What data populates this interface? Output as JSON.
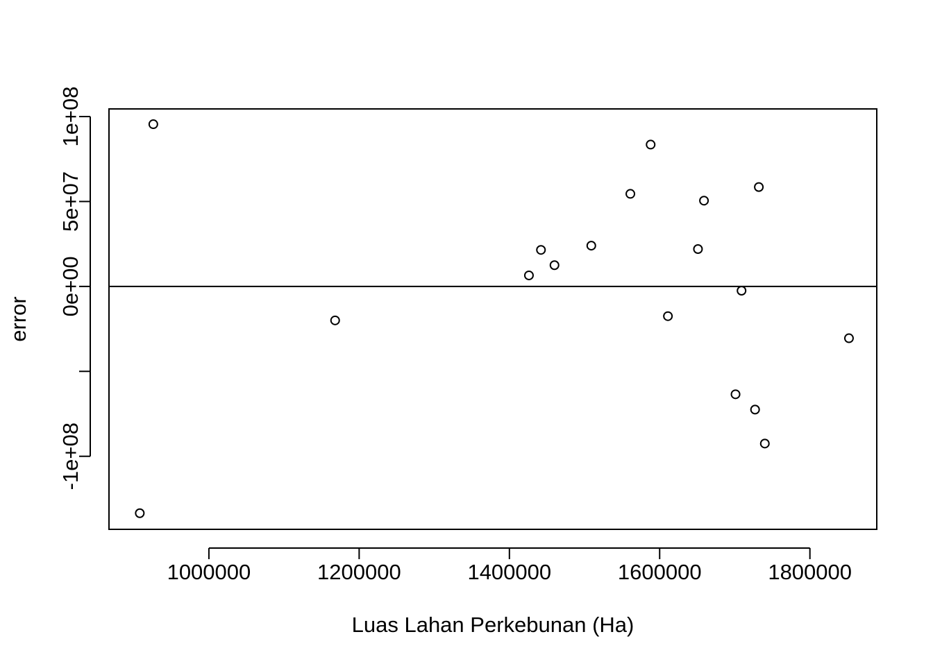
{
  "chart_data": {
    "type": "scatter",
    "title": "",
    "xlabel": "Luas Lahan Perkebunan (Ha)",
    "ylabel": "error",
    "xlim": [
      867000,
      1889000
    ],
    "ylim": [
      -143000000,
      104500000
    ],
    "x_ticks": [
      {
        "value": 1000000,
        "label": "1000000"
      },
      {
        "value": 1200000,
        "label": "1200000"
      },
      {
        "value": 1400000,
        "label": "1400000"
      },
      {
        "value": 1600000,
        "label": "1600000"
      },
      {
        "value": 1800000,
        "label": "1800000"
      }
    ],
    "y_ticks": [
      {
        "value": 100000000,
        "label": "1e+08"
      },
      {
        "value": 50000000,
        "label": "5e+07"
      },
      {
        "value": 0,
        "label": "0e+00"
      },
      {
        "value": -50000000,
        "label": ""
      },
      {
        "value": -100000000,
        "label": "-1e+08"
      }
    ],
    "reference_line": {
      "y": 0
    },
    "grid": false,
    "points": [
      {
        "x": 908000,
        "y": -133500000
      },
      {
        "x": 926000,
        "y": 95500000
      },
      {
        "x": 1168000,
        "y": -20000000
      },
      {
        "x": 1426000,
        "y": 6500000
      },
      {
        "x": 1442000,
        "y": 21500000
      },
      {
        "x": 1460000,
        "y": 12500000
      },
      {
        "x": 1509000,
        "y": 24000000
      },
      {
        "x": 1561000,
        "y": 54500000
      },
      {
        "x": 1588000,
        "y": 83500000
      },
      {
        "x": 1611000,
        "y": -17500000
      },
      {
        "x": 1651000,
        "y": 22000000
      },
      {
        "x": 1659000,
        "y": 50500000
      },
      {
        "x": 1701000,
        "y": -63500000
      },
      {
        "x": 1709000,
        "y": -2500000
      },
      {
        "x": 1727000,
        "y": -72500000
      },
      {
        "x": 1732000,
        "y": 58500000
      },
      {
        "x": 1740000,
        "y": -92500000
      },
      {
        "x": 1852000,
        "y": -30500000
      }
    ]
  }
}
